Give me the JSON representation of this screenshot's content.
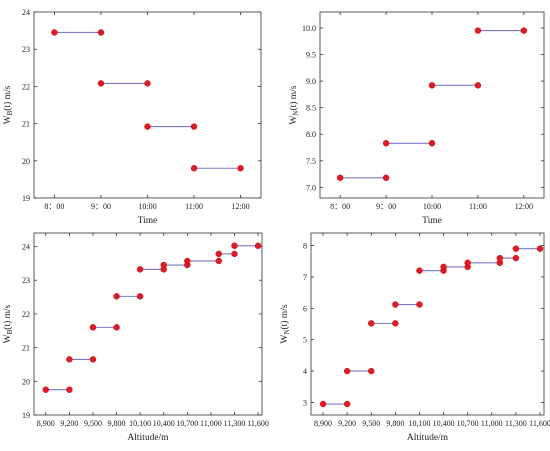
{
  "chart_data": [
    {
      "id": "top-left",
      "type": "line",
      "title": "",
      "xlabel": "Time",
      "ylabel": "W",
      "ylabel_sub": "B",
      "ylabel_rest": "(t) m/s",
      "xaxis": "categorical",
      "x_ticks": [
        "8：00",
        "9：00",
        "10:00",
        "11:00",
        "12:00"
      ],
      "ylim": [
        19,
        24
      ],
      "y_ticks": [
        "19",
        "20",
        "21",
        "22",
        "23",
        "24"
      ],
      "steps": [
        {
          "x0": "8：00",
          "x1": "9：00",
          "y": 23.45
        },
        {
          "x0": "9：00",
          "x1": "10:00",
          "y": 22.08
        },
        {
          "x0": "10:00",
          "x1": "11:00",
          "y": 20.92
        },
        {
          "x0": "11:00",
          "x1": "12:00",
          "y": 19.8
        }
      ]
    },
    {
      "id": "top-right",
      "type": "line",
      "title": "",
      "xlabel": "Time",
      "ylabel": "W",
      "ylabel_sub": "N",
      "ylabel_rest": "(t) m/s",
      "xaxis": "categorical",
      "x_ticks": [
        "8：00",
        "9：00",
        "10:00",
        "11:00",
        "12:00"
      ],
      "ylim": [
        6.8,
        10.3
      ],
      "y_ticks": [
        "7.0",
        "7.5",
        "8.0",
        "8.5",
        "9.0",
        "9.5",
        "10.0"
      ],
      "steps": [
        {
          "x0": "8：00",
          "x1": "9：00",
          "y": 7.18
        },
        {
          "x0": "9：00",
          "x1": "10:00",
          "y": 7.83
        },
        {
          "x0": "10:00",
          "x1": "11:00",
          "y": 8.92
        },
        {
          "x0": "11:00",
          "x1": "12:00",
          "y": 9.95
        }
      ]
    },
    {
      "id": "bottom-left",
      "type": "line",
      "title": "",
      "xlabel": "Altitude/m",
      "ylabel": "W",
      "ylabel_sub": "B",
      "ylabel_rest": "(t) m/s",
      "xaxis": "numeric",
      "xlim": [
        8750,
        11650
      ],
      "x_ticks": [
        "8,900",
        "9,200",
        "9,500",
        "9,800",
        "10,100",
        "10,400",
        "10,700",
        "11,000",
        "11,300",
        "11,600"
      ],
      "x_tick_values": [
        8900,
        9200,
        9500,
        9800,
        10100,
        10400,
        10700,
        11000,
        11300,
        11600
      ],
      "ylim": [
        19,
        24.4
      ],
      "y_ticks": [
        "19",
        "20",
        "21",
        "22",
        "23",
        "24"
      ],
      "steps": [
        {
          "x0": 8900,
          "x1": 9200,
          "y": 19.75
        },
        {
          "x0": 9200,
          "x1": 9500,
          "y": 20.65
        },
        {
          "x0": 9500,
          "x1": 9800,
          "y": 21.6
        },
        {
          "x0": 9800,
          "x1": 10100,
          "y": 22.52
        },
        {
          "x0": 10100,
          "x1": 10400,
          "y": 23.32
        },
        {
          "x0": 10400,
          "x1": 10700,
          "y": 23.45
        },
        {
          "x0": 10700,
          "x1": 11100,
          "y": 23.57
        },
        {
          "x0": 11100,
          "x1": 11300,
          "y": 23.78
        },
        {
          "x0": 11300,
          "x1": 11600,
          "y": 24.02
        }
      ],
      "points": [
        {
          "x": 8900,
          "y": 19.75
        },
        {
          "x": 9200,
          "y": 19.75
        },
        {
          "x": 9200,
          "y": 20.65
        },
        {
          "x": 9500,
          "y": 20.65
        },
        {
          "x": 9500,
          "y": 21.6
        },
        {
          "x": 9800,
          "y": 21.6
        },
        {
          "x": 9800,
          "y": 22.52
        },
        {
          "x": 10100,
          "y": 22.52
        },
        {
          "x": 10100,
          "y": 23.32
        },
        {
          "x": 10400,
          "y": 23.32
        },
        {
          "x": 10400,
          "y": 23.45
        },
        {
          "x": 10700,
          "y": 23.45
        },
        {
          "x": 10700,
          "y": 23.57
        },
        {
          "x": 11100,
          "y": 23.57
        },
        {
          "x": 11100,
          "y": 23.78
        },
        {
          "x": 11300,
          "y": 23.78
        },
        {
          "x": 11300,
          "y": 24.02
        },
        {
          "x": 11600,
          "y": 24.02
        }
      ]
    },
    {
      "id": "bottom-right",
      "type": "line",
      "title": "",
      "xlabel": "Altitude/m",
      "ylabel": "W",
      "ylabel_sub": "N",
      "ylabel_rest": "(t) m/s",
      "xaxis": "numeric",
      "xlim": [
        8750,
        11650
      ],
      "x_ticks": [
        "8,900",
        "9,200",
        "9,500",
        "9,800",
        "10,100",
        "10,400",
        "10,700",
        "11,000",
        "11,300",
        "11,600"
      ],
      "x_tick_values": [
        8900,
        9200,
        9500,
        9800,
        10100,
        10400,
        10700,
        11000,
        11300,
        11600
      ],
      "ylim": [
        2.6,
        8.4
      ],
      "y_ticks": [
        "3",
        "4",
        "5",
        "6",
        "7",
        "8"
      ],
      "steps": [
        {
          "x0": 8900,
          "x1": 9200,
          "y": 2.95
        },
        {
          "x0": 9200,
          "x1": 9500,
          "y": 4.0
        },
        {
          "x0": 9500,
          "x1": 9800,
          "y": 5.52
        },
        {
          "x0": 9800,
          "x1": 10100,
          "y": 6.12
        },
        {
          "x0": 10100,
          "x1": 10400,
          "y": 7.2
        },
        {
          "x0": 10400,
          "x1": 10700,
          "y": 7.32
        },
        {
          "x0": 10700,
          "x1": 11100,
          "y": 7.45
        },
        {
          "x0": 11100,
          "x1": 11300,
          "y": 7.6
        },
        {
          "x0": 11300,
          "x1": 11600,
          "y": 7.9
        }
      ],
      "points": [
        {
          "x": 8900,
          "y": 2.95
        },
        {
          "x": 9200,
          "y": 2.95
        },
        {
          "x": 9200,
          "y": 4.0
        },
        {
          "x": 9500,
          "y": 4.0
        },
        {
          "x": 9500,
          "y": 5.52
        },
        {
          "x": 9800,
          "y": 5.52
        },
        {
          "x": 9800,
          "y": 6.12
        },
        {
          "x": 10100,
          "y": 6.12
        },
        {
          "x": 10100,
          "y": 7.2
        },
        {
          "x": 10400,
          "y": 7.2
        },
        {
          "x": 10400,
          "y": 7.32
        },
        {
          "x": 10700,
          "y": 7.32
        },
        {
          "x": 10700,
          "y": 7.45
        },
        {
          "x": 11100,
          "y": 7.45
        },
        {
          "x": 11100,
          "y": 7.6
        },
        {
          "x": 11300,
          "y": 7.6
        },
        {
          "x": 11300,
          "y": 7.9
        },
        {
          "x": 11600,
          "y": 7.9
        }
      ]
    }
  ],
  "style": {
    "segment_color": "#7a7ac8",
    "point_color": "#e01b24"
  }
}
